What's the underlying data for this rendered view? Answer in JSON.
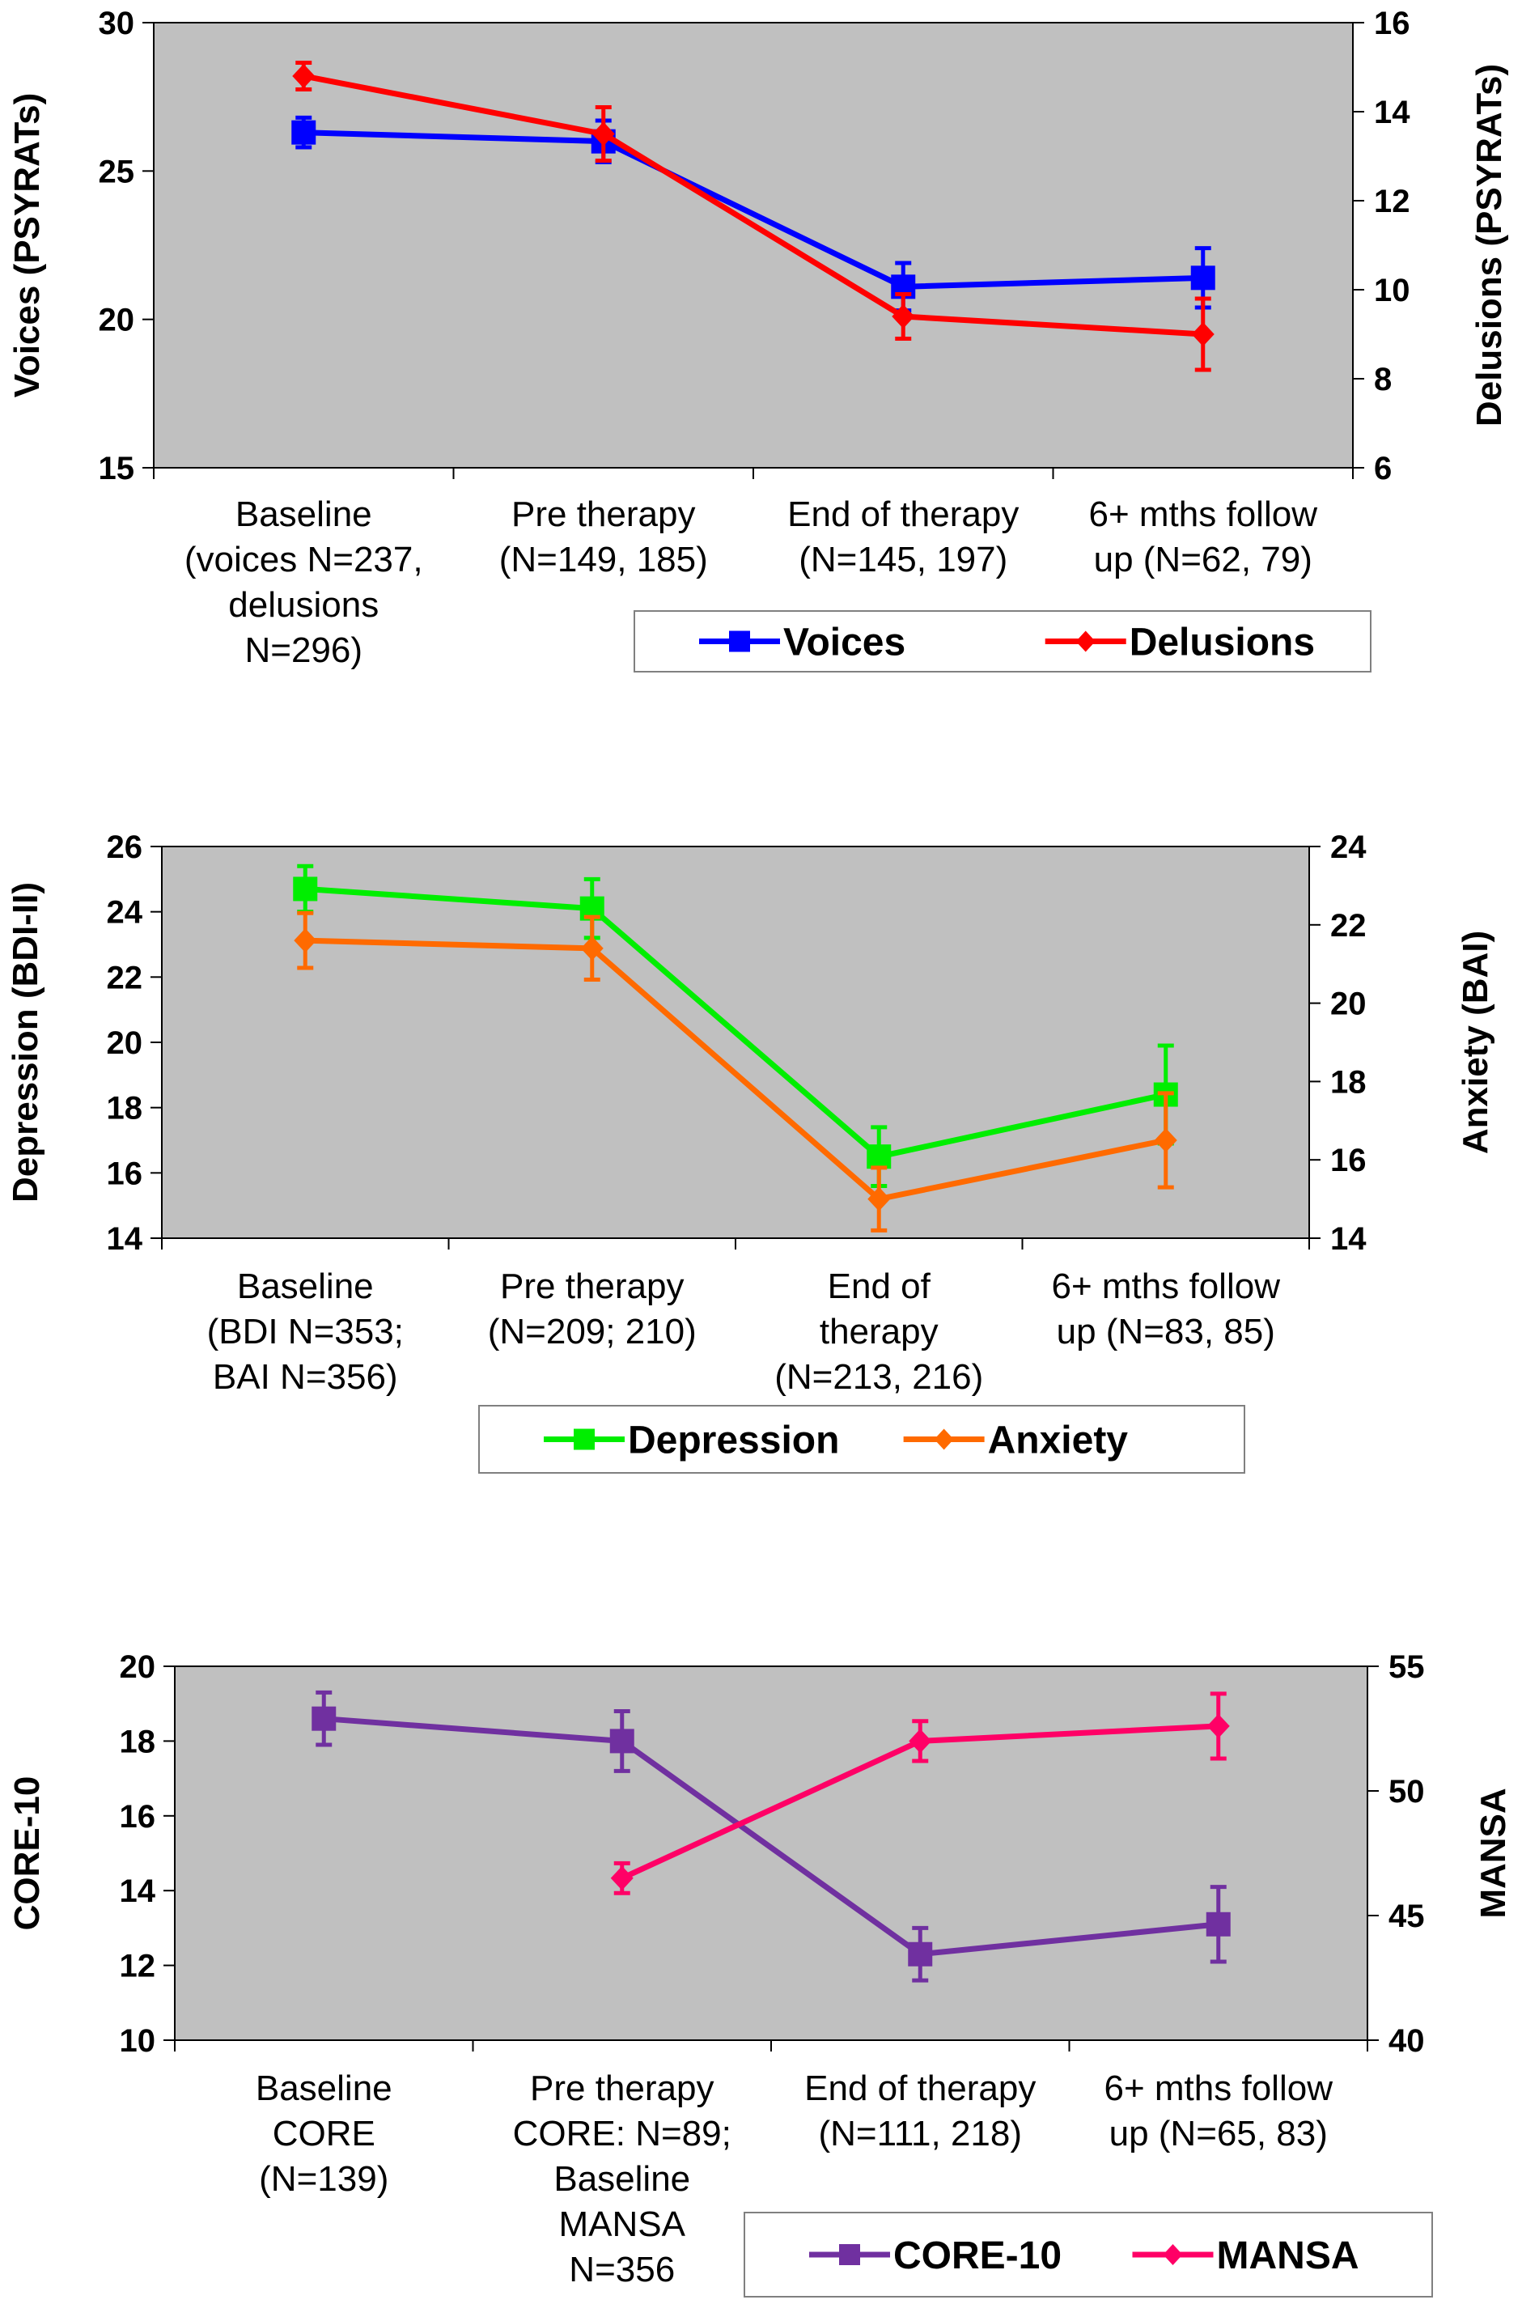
{
  "chart_data": [
    {
      "type": "line",
      "title": "",
      "categories": [
        [
          "Baseline",
          "(voices N=237,",
          "delusions",
          "N=296)"
        ],
        [
          "Pre therapy",
          "(N=149, 185)"
        ],
        [
          "End of therapy",
          "(N=145, 197)"
        ],
        [
          "6+ mths follow",
          "up (N=62, 79)"
        ]
      ],
      "ylabel_left": "Voices (PSYRATs)",
      "ylabel_right": "Delusions (PSYRATs)",
      "ylim_left": [
        15,
        30
      ],
      "yticks_left": [
        15,
        20,
        25,
        30
      ],
      "ylim_right": [
        6,
        16
      ],
      "yticks_right": [
        6,
        8,
        10,
        12,
        14,
        16
      ],
      "legend": [
        "Voices",
        "Delusions"
      ],
      "series": [
        {
          "name": "Voices",
          "axis": "left",
          "color": "#0000ff",
          "marker": "square",
          "values": [
            26.3,
            26.0,
            21.1,
            21.4
          ],
          "err": [
            0.5,
            0.7,
            0.8,
            1.0
          ],
          "start": 0
        },
        {
          "name": "Delusions",
          "axis": "right",
          "color": "#ff0000",
          "marker": "diamond",
          "values": [
            14.8,
            13.5,
            9.4,
            9.0
          ],
          "err": [
            0.3,
            0.6,
            0.5,
            0.8
          ],
          "start": 0
        }
      ]
    },
    {
      "type": "line",
      "title": "",
      "categories": [
        [
          "Baseline",
          "(BDI N=353;",
          "BAI N=356)"
        ],
        [
          "Pre therapy",
          "(N=209; 210)"
        ],
        [
          "End of",
          "therapy",
          "(N=213, 216)"
        ],
        [
          "6+ mths follow",
          "up (N=83, 85)"
        ]
      ],
      "ylabel_left": "Depression (BDI-II)",
      "ylabel_right": "Anxiety (BAI)",
      "ylim_left": [
        14,
        26
      ],
      "yticks_left": [
        14,
        16,
        18,
        20,
        22,
        24,
        26
      ],
      "ylim_right": [
        14,
        24
      ],
      "yticks_right": [
        14,
        16,
        18,
        20,
        22,
        24
      ],
      "legend": [
        "Depression",
        "Anxiety"
      ],
      "series": [
        {
          "name": "Depression",
          "axis": "left",
          "color": "#00ee00",
          "marker": "square",
          "values": [
            24.7,
            24.1,
            16.5,
            18.4
          ],
          "err": [
            0.7,
            0.9,
            0.9,
            1.5
          ],
          "start": 0
        },
        {
          "name": "Anxiety",
          "axis": "right",
          "color": "#ff6a00",
          "marker": "diamond",
          "values": [
            21.6,
            21.4,
            15.0,
            16.5
          ],
          "err": [
            0.7,
            0.8,
            0.8,
            1.2
          ],
          "start": 0
        }
      ]
    },
    {
      "type": "line",
      "title": "",
      "categories": [
        [
          "Baseline",
          "CORE",
          "(N=139)"
        ],
        [
          "Pre therapy",
          "CORE: N=89;",
          "Baseline",
          "MANSA",
          "N=356"
        ],
        [
          "End of therapy",
          "(N=111, 218)"
        ],
        [
          "6+ mths follow",
          "up (N=65, 83)"
        ]
      ],
      "ylabel_left": "CORE-10",
      "ylabel_right": "MANSA",
      "ylim_left": [
        10,
        20
      ],
      "yticks_left": [
        10,
        12,
        14,
        16,
        18,
        20
      ],
      "ylim_right": [
        40,
        55
      ],
      "yticks_right": [
        40,
        45,
        50,
        55
      ],
      "legend": [
        "CORE-10",
        "MANSA"
      ],
      "series": [
        {
          "name": "CORE-10",
          "axis": "left",
          "color": "#7030a0",
          "marker": "square",
          "values": [
            18.6,
            18.0,
            12.3,
            13.1
          ],
          "err": [
            0.7,
            0.8,
            0.7,
            1.0
          ],
          "start": 0
        },
        {
          "name": "MANSA",
          "axis": "right",
          "color": "#ff0066",
          "marker": "diamond",
          "values": [
            null,
            46.5,
            52.0,
            52.6
          ],
          "err": [
            0,
            0.6,
            0.8,
            1.3
          ],
          "start": 1
        }
      ]
    }
  ]
}
